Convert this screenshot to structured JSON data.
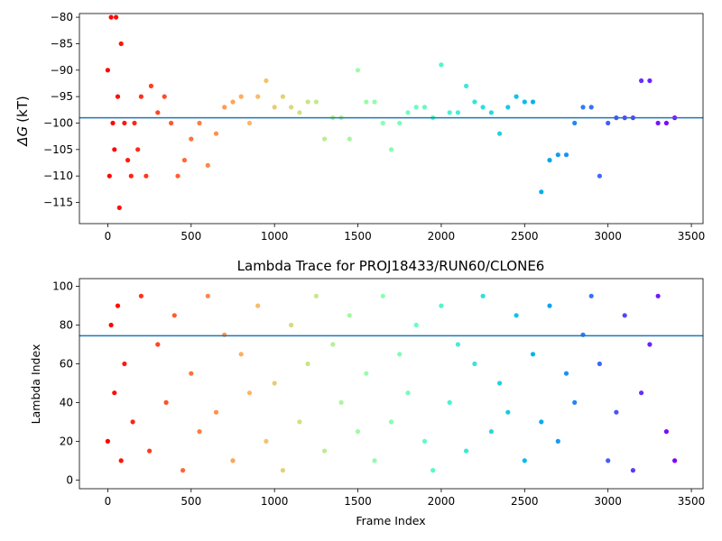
{
  "chart_data": [
    {
      "type": "scatter",
      "title": "",
      "xlabel": "",
      "ylabel": "ΔG (kT)",
      "ylabel_symbol": "ΔG",
      "ylabel_unit": "(kT)",
      "xlim": [
        -170,
        3570
      ],
      "ylim": [
        -119,
        -79.3
      ],
      "xticks": [
        0,
        500,
        1000,
        1500,
        2000,
        2500,
        3000,
        3500
      ],
      "yticks": [
        -115,
        -110,
        -105,
        -100,
        -95,
        -90,
        -85,
        -80
      ],
      "ytick_labels": [
        "−115",
        "−110",
        "−105",
        "−100",
        "−95",
        "−90",
        "−85",
        "−80"
      ],
      "hline": -99,
      "hline_color": "#1f77b4",
      "colormap": "rainbow (frame index: red at start → violet at end)",
      "grid": false,
      "series": [
        {
          "x": [
            0,
            10,
            20,
            30,
            40,
            50,
            60,
            70,
            80,
            100,
            120,
            140,
            160,
            180,
            200,
            230,
            260,
            300,
            340,
            380,
            420,
            460,
            500,
            550,
            600,
            650,
            700,
            750,
            800,
            850,
            900,
            950,
            1000,
            1050,
            1100,
            1150,
            1200,
            1250,
            1300,
            1350,
            1400,
            1450,
            1500,
            1550,
            1600,
            1650,
            1700,
            1750,
            1800,
            1850,
            1900,
            1950,
            2000,
            2050,
            2100,
            2150,
            2200,
            2250,
            2300,
            2350,
            2400,
            2450,
            2500,
            2550,
            2600,
            2650,
            2700,
            2750,
            2800,
            2850,
            2900,
            2950,
            3000,
            3050,
            3100,
            3150,
            3200,
            3250,
            3300,
            3350,
            3400
          ],
          "y": [
            -90,
            -110,
            -80,
            -100,
            -105,
            -80,
            -95,
            -116,
            -85,
            -100,
            -107,
            -110,
            -100,
            -105,
            -95,
            -110,
            -93,
            -98,
            -95,
            -100,
            -110,
            -107,
            -103,
            -100,
            -108,
            -102,
            -97,
            -96,
            -95,
            -100,
            -95,
            -92,
            -97,
            -95,
            -97,
            -98,
            -96,
            -96,
            -103,
            -99,
            -99,
            -103,
            -90,
            -96,
            -96,
            -100,
            -105,
            -100,
            -98,
            -97,
            -97,
            -99,
            -89,
            -98,
            -98,
            -93,
            -96,
            -97,
            -98,
            -102,
            -97,
            -95,
            -96,
            -96,
            -113,
            -107,
            -106,
            -106,
            -100,
            -97,
            -97,
            -110,
            -100,
            -99,
            -99,
            -99,
            -92,
            -92,
            -100,
            -100,
            -99
          ]
        }
      ]
    },
    {
      "type": "scatter",
      "title": "Lambda Trace for PROJ18433/RUN60/CLONE6",
      "xlabel": "Frame Index",
      "ylabel": "Lambda Index",
      "xlim": [
        -170,
        3570
      ],
      "ylim": [
        -4.5,
        104
      ],
      "xticks": [
        0,
        500,
        1000,
        1500,
        2000,
        2500,
        3000,
        3500
      ],
      "yticks": [
        0,
        20,
        40,
        60,
        80,
        100
      ],
      "hline": 74.5,
      "hline_color": "#1f77b4",
      "colormap": "rainbow (frame index: red at start → violet at end)",
      "grid": false,
      "series": [
        {
          "x": [
            0,
            20,
            40,
            60,
            80,
            100,
            150,
            200,
            250,
            300,
            350,
            400,
            450,
            500,
            550,
            600,
            650,
            700,
            750,
            800,
            850,
            900,
            950,
            1000,
            1050,
            1100,
            1150,
            1200,
            1250,
            1300,
            1350,
            1400,
            1450,
            1500,
            1550,
            1600,
            1650,
            1700,
            1750,
            1800,
            1850,
            1900,
            1950,
            2000,
            2050,
            2100,
            2150,
            2200,
            2250,
            2300,
            2350,
            2400,
            2450,
            2500,
            2550,
            2600,
            2650,
            2700,
            2750,
            2800,
            2850,
            2900,
            2950,
            3000,
            3050,
            3100,
            3150,
            3200,
            3250,
            3300,
            3350,
            3400
          ],
          "y": [
            20,
            80,
            45,
            90,
            10,
            60,
            30,
            95,
            15,
            70,
            40,
            85,
            5,
            55,
            25,
            95,
            35,
            75,
            10,
            65,
            45,
            90,
            20,
            50,
            5,
            80,
            30,
            60,
            95,
            15,
            70,
            40,
            85,
            25,
            55,
            10,
            95,
            30,
            65,
            45,
            80,
            20,
            5,
            90,
            40,
            70,
            15,
            60,
            95,
            25,
            50,
            35,
            85,
            10,
            65,
            30,
            90,
            20,
            55,
            40,
            75,
            95,
            60,
            10,
            35,
            85,
            5,
            45,
            70,
            95,
            25,
            10
          ]
        }
      ]
    }
  ]
}
